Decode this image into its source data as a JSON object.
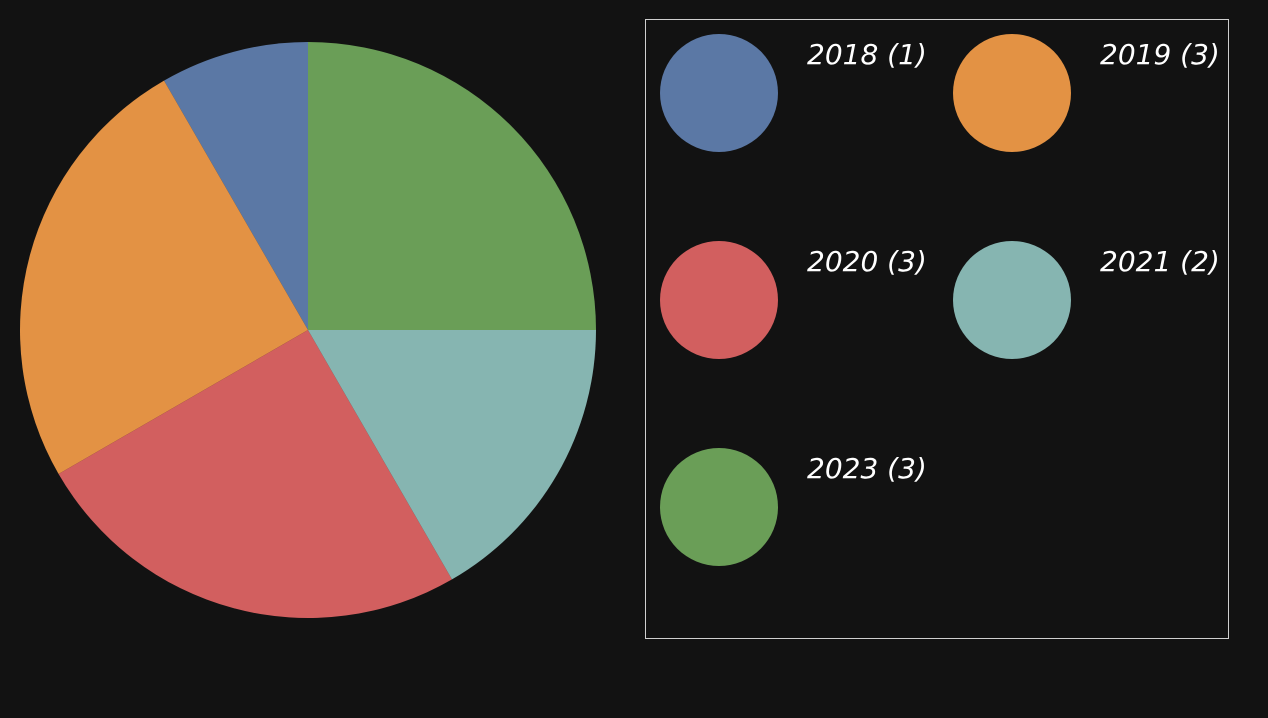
{
  "chart_data": {
    "type": "pie",
    "categories": [
      "2018",
      "2019",
      "2020",
      "2021",
      "2023"
    ],
    "values": [
      1,
      3,
      3,
      2,
      3
    ],
    "colors": [
      "#5b78a5",
      "#e39244",
      "#d25f5f",
      "#86b5b1",
      "#6a9e57"
    ],
    "legend": {
      "placement": "right",
      "entries": [
        "2018 (1)",
        "2019 (3)",
        "2020 (3)",
        "2021 (2)",
        "2023 (3)"
      ]
    },
    "title": "",
    "start_angle": "top",
    "direction": "counterclockwise"
  }
}
